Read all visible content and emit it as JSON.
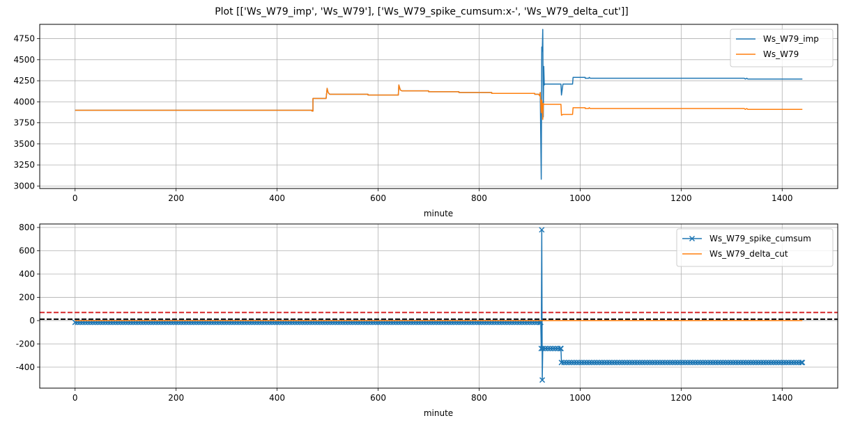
{
  "chart_data": [
    {
      "type": "line",
      "title": "Plot [['Ws_W79_imp', 'Ws_W79'], ['Ws_W79_spike_cumsum:x-', 'Ws_W79_delta_cut']]",
      "xlabel": "minute",
      "ylabel": "",
      "xlim": [
        -70,
        1510
      ],
      "ylim": [
        2970,
        4920
      ],
      "xticks": [
        0,
        200,
        400,
        600,
        800,
        1000,
        1200,
        1400
      ],
      "yticks": [
        3000,
        3250,
        3500,
        3750,
        4000,
        4250,
        4500,
        4750
      ],
      "grid": true,
      "legend_position": "top-right",
      "series": [
        {
          "name": "Ws_W79_imp",
          "color": "#1f77b4",
          "marker": "none",
          "points": [
            [
              0,
              3900
            ],
            [
              469,
              3900
            ],
            [
              469,
              3890
            ],
            [
              471,
              3890
            ],
            [
              471,
              4040
            ],
            [
              497,
              4040
            ],
            [
              499,
              4160
            ],
            [
              501,
              4110
            ],
            [
              504,
              4090
            ],
            [
              580,
              4090
            ],
            [
              580,
              4080
            ],
            [
              640,
              4080
            ],
            [
              641,
              4200
            ],
            [
              644,
              4140
            ],
            [
              647,
              4130
            ],
            [
              700,
              4130
            ],
            [
              700,
              4120
            ],
            [
              760,
              4120
            ],
            [
              760,
              4110
            ],
            [
              825,
              4110
            ],
            [
              825,
              4100
            ],
            [
              910,
              4100
            ],
            [
              910,
              4090
            ],
            [
              918,
              4090
            ],
            [
              920,
              4070
            ],
            [
              921,
              4110
            ],
            [
              923,
              3080
            ],
            [
              924,
              4650
            ],
            [
              925,
              4600
            ],
            [
              926,
              4860
            ],
            [
              927,
              3820
            ],
            [
              928,
              4420
            ],
            [
              929,
              4200
            ],
            [
              930,
              4210
            ],
            [
              962,
              4210
            ],
            [
              963,
              4080
            ],
            [
              966,
              4210
            ],
            [
              985,
              4210
            ],
            [
              986,
              4290
            ],
            [
              1010,
              4290
            ],
            [
              1010,
              4280
            ],
            [
              1017,
              4280
            ],
            [
              1018,
              4290
            ],
            [
              1020,
              4280
            ],
            [
              1325,
              4280
            ],
            [
              1327,
              4270
            ],
            [
              1330,
              4280
            ],
            [
              1332,
              4270
            ],
            [
              1440,
              4270
            ]
          ]
        },
        {
          "name": "Ws_W79",
          "color": "#ff7f0e",
          "marker": "none",
          "points": [
            [
              0,
              3900
            ],
            [
              469,
              3900
            ],
            [
              469,
              3890
            ],
            [
              471,
              3890
            ],
            [
              471,
              4040
            ],
            [
              497,
              4040
            ],
            [
              499,
              4160
            ],
            [
              501,
              4110
            ],
            [
              504,
              4090
            ],
            [
              580,
              4090
            ],
            [
              580,
              4080
            ],
            [
              640,
              4080
            ],
            [
              641,
              4200
            ],
            [
              644,
              4140
            ],
            [
              647,
              4130
            ],
            [
              700,
              4130
            ],
            [
              700,
              4120
            ],
            [
              760,
              4120
            ],
            [
              760,
              4110
            ],
            [
              825,
              4110
            ],
            [
              825,
              4100
            ],
            [
              910,
              4100
            ],
            [
              910,
              4090
            ],
            [
              918,
              4090
            ],
            [
              920,
              4070
            ],
            [
              921,
              4110
            ],
            [
              923,
              3870
            ],
            [
              924,
              4020
            ],
            [
              925,
              3960
            ],
            [
              926,
              3790
            ],
            [
              927,
              3980
            ],
            [
              928,
              3970
            ],
            [
              962,
              3970
            ],
            [
              963,
              3840
            ],
            [
              966,
              3850
            ],
            [
              985,
              3850
            ],
            [
              986,
              3930
            ],
            [
              1010,
              3930
            ],
            [
              1010,
              3920
            ],
            [
              1017,
              3920
            ],
            [
              1018,
              3930
            ],
            [
              1020,
              3920
            ],
            [
              1325,
              3920
            ],
            [
              1327,
              3910
            ],
            [
              1330,
              3920
            ],
            [
              1332,
              3910
            ],
            [
              1440,
              3910
            ]
          ]
        }
      ]
    },
    {
      "type": "line",
      "title": "",
      "xlabel": "minute",
      "ylabel": "",
      "xlim": [
        -70,
        1510
      ],
      "ylim": [
        -580,
        830
      ],
      "xticks": [
        0,
        200,
        400,
        600,
        800,
        1000,
        1200,
        1400
      ],
      "yticks": [
        -400,
        -200,
        0,
        200,
        400,
        600,
        800
      ],
      "grid": true,
      "legend_position": "top-right",
      "hlines": [
        {
          "y": 70,
          "color": "#d62728",
          "style": "dashed"
        },
        {
          "y": 12,
          "color": "#000000",
          "style": "dashed"
        }
      ],
      "series": [
        {
          "name": "Ws_W79_spike_cumsum",
          "color": "#1f77b4",
          "marker": "x",
          "step": 5,
          "segments": [
            {
              "from": 0,
              "to": 922,
              "value": -15
            },
            {
              "from": 923,
              "to": 923,
              "value": -240
            },
            {
              "from": 924,
              "to": 924,
              "value": 780
            },
            {
              "from": 925,
              "to": 925,
              "value": -510
            },
            {
              "from": 926,
              "to": 962,
              "value": -240
            },
            {
              "from": 963,
              "to": 1440,
              "value": -360
            }
          ]
        },
        {
          "name": "Ws_W79_delta_cut",
          "color": "#ff7f0e",
          "marker": "none",
          "points": [
            [
              0,
              0
            ],
            [
              1440,
              0
            ]
          ]
        }
      ]
    }
  ]
}
